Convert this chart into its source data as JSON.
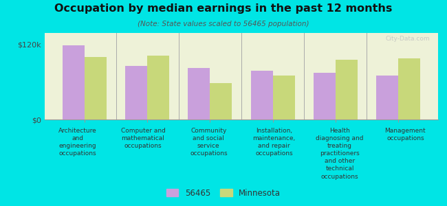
{
  "title": "Occupation by median earnings in the past 12 months",
  "subtitle": "(Note: State values scaled to 56465 population)",
  "background_color": "#00e5e5",
  "plot_bg_color": "#eef2d8",
  "categories": [
    "Architecture\nand\nengineering\noccupations",
    "Computer and\nmathematical\noccupations",
    "Community\nand social\nservice\noccupations",
    "Installation,\nmaintenance,\nand repair\noccupations",
    "Health\ndiagnosing and\ntreating\npractitioners\nand other\ntechnical\noccupations",
    "Management\noccupations"
  ],
  "values_56465": [
    118000,
    85000,
    82000,
    78000,
    74000,
    70000
  ],
  "values_minnesota": [
    100000,
    102000,
    58000,
    70000,
    95000,
    97000
  ],
  "color_56465": "#c9a0dc",
  "color_minnesota": "#c8d87a",
  "ylabel_ticks": [
    "$0",
    "$120k"
  ],
  "ytick_values": [
    0,
    120000
  ],
  "ylim": [
    0,
    138000
  ],
  "legend_label_56465": "56465",
  "legend_label_minnesota": "Minnesota",
  "bar_width": 0.35,
  "watermark": "City-Data.com"
}
